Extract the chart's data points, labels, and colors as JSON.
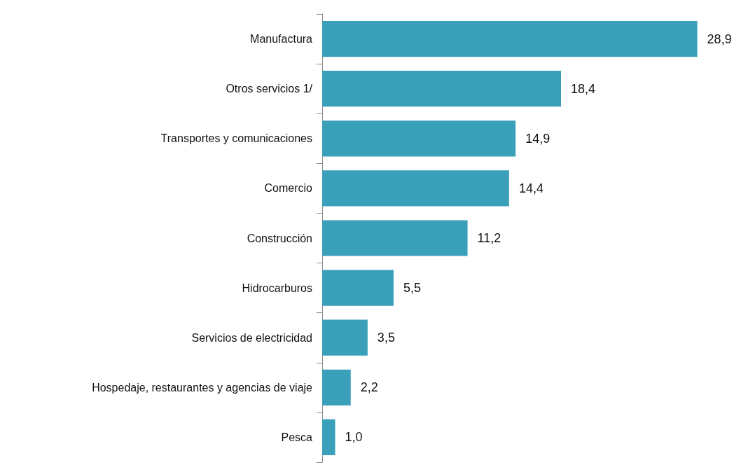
{
  "chart_data": {
    "type": "bar",
    "orientation": "horizontal",
    "categories": [
      "Manufactura",
      "Otros servicios 1/",
      "Transportes y comunicaciones",
      "Comercio",
      "Construcción",
      "Hidrocarburos",
      "Servicios de electricidad",
      "Hospedaje, restaurantes y agencias de viaje",
      "Pesca"
    ],
    "values": [
      28.9,
      18.4,
      14.9,
      14.4,
      11.2,
      5.5,
      3.5,
      2.2,
      1.0
    ],
    "value_labels": [
      "28,9",
      "18,4",
      "14,9",
      "14,4",
      "11,2",
      "5,5",
      "3,5",
      "2,2",
      "1,0"
    ],
    "color": "#3a9fb9",
    "tick_labels": "y"
  }
}
